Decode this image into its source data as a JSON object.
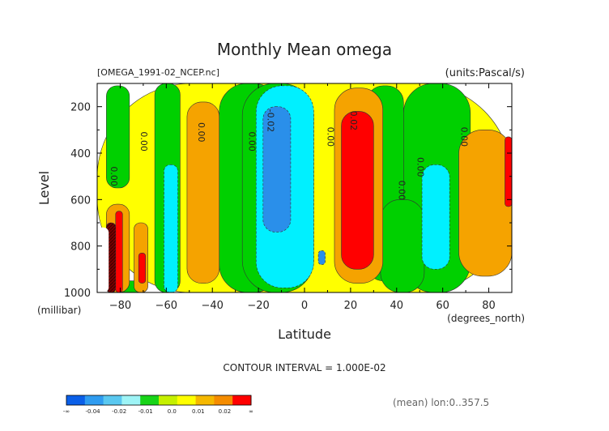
{
  "chart_data": {
    "type": "contour",
    "title": "Monthly Mean omega",
    "file_label": "[OMEGA_1991-02_NCEP.nc]",
    "units_label": "(units:Pascal/s)",
    "xlabel": "Latitude",
    "x_units": "(degrees_north)",
    "ylabel": "Level",
    "y_units": "(millibar)",
    "xlim": [
      -90,
      90
    ],
    "ylim": [
      1000,
      100
    ],
    "x_ticks": [
      -80,
      -60,
      -40,
      -20,
      0,
      20,
      40,
      60,
      80
    ],
    "x_tick_labels": [
      "−80",
      "−60",
      "−40",
      "−20",
      "0",
      "20",
      "40",
      "60",
      "80"
    ],
    "y_ticks": [
      1000,
      800,
      600,
      400,
      200
    ],
    "y_tick_labels": [
      "1000",
      "800",
      "600",
      "400",
      "200"
    ],
    "contour_interval": "CONTOUR INTERVAL = 1.000E-02",
    "mean_note": "(mean) lon:0..357.5",
    "contour_labels": [
      {
        "text": "0.00",
        "lat": -84,
        "lev": 500
      },
      {
        "text": "0.00",
        "lat": -71,
        "lev": 350
      },
      {
        "text": "0.00",
        "lat": -46,
        "lev": 310
      },
      {
        "text": "0.00",
        "lat": -24,
        "lev": 350
      },
      {
        "text": "-0.02",
        "lat": -16,
        "lev": 260
      },
      {
        "text": "0.00",
        "lat": 10,
        "lev": 330
      },
      {
        "text": "0.02",
        "lat": 20,
        "lev": 260
      },
      {
        "text": "0.00",
        "lat": 41,
        "lev": 560
      },
      {
        "text": "0.00",
        "lat": 49,
        "lev": 460
      },
      {
        "text": "0.00",
        "lat": 68,
        "lev": 330
      }
    ],
    "regions": [
      {
        "band": "yellow",
        "lat": [
          -90,
          90
        ],
        "lev": [
          100,
          1000
        ]
      },
      {
        "band": "green",
        "lat": [
          -86,
          -76
        ],
        "lev": [
          110,
          550
        ]
      },
      {
        "band": "green",
        "lat": [
          -65,
          -54
        ],
        "lev": [
          100,
          1000
        ]
      },
      {
        "band": "green",
        "lat": [
          -37,
          -10
        ],
        "lev": [
          100,
          1000
        ]
      },
      {
        "band": "green",
        "lat": [
          -27,
          4
        ],
        "lev": [
          100,
          1000
        ]
      },
      {
        "band": "green",
        "lat": [
          27,
          43
        ],
        "lev": [
          110,
          950
        ]
      },
      {
        "band": "green",
        "lat": [
          43,
          72
        ],
        "lev": [
          100,
          1000
        ]
      },
      {
        "band": "green",
        "lat": [
          33,
          52
        ],
        "lev": [
          600,
          1000
        ]
      },
      {
        "band": "green",
        "lat": [
          -86,
          -70
        ],
        "lev": [
          950,
          1000
        ]
      },
      {
        "band": "light-blue",
        "lat": [
          -61,
          -55
        ],
        "lev": [
          450,
          1000
        ]
      },
      {
        "band": "light-blue",
        "lat": [
          -21,
          4
        ],
        "lev": [
          110,
          980
        ]
      },
      {
        "band": "light-blue",
        "lat": [
          51,
          63
        ],
        "lev": [
          450,
          900
        ]
      },
      {
        "band": "blue",
        "lat": [
          -18,
          -6
        ],
        "lev": [
          200,
          740
        ]
      },
      {
        "band": "blue",
        "lat": [
          6,
          9
        ],
        "lev": [
          820,
          880
        ]
      },
      {
        "band": "orange",
        "lat": [
          13,
          34
        ],
        "lev": [
          120,
          960
        ]
      },
      {
        "band": "orange",
        "lat": [
          -51,
          -37
        ],
        "lev": [
          180,
          960
        ]
      },
      {
        "band": "orange",
        "lat": [
          67,
          90
        ],
        "lev": [
          300,
          930
        ]
      },
      {
        "band": "orange",
        "lat": [
          -86,
          -76
        ],
        "lev": [
          620,
          1000
        ]
      },
      {
        "band": "orange",
        "lat": [
          -74,
          -68
        ],
        "lev": [
          700,
          1000
        ]
      },
      {
        "band": "red",
        "lat": [
          16,
          30
        ],
        "lev": [
          220,
          900
        ]
      },
      {
        "band": "red",
        "lat": [
          -82,
          -79
        ],
        "lev": [
          650,
          1000
        ]
      },
      {
        "band": "red",
        "lat": [
          -72,
          -69
        ],
        "lev": [
          830,
          960
        ]
      },
      {
        "band": "red",
        "lat": [
          87,
          90
        ],
        "lev": [
          330,
          630
        ]
      },
      {
        "band": "dark-red",
        "lat": [
          -86,
          -82
        ],
        "lev": [
          700,
          1000
        ]
      },
      {
        "band": "missing",
        "lat": [
          -90,
          -85
        ],
        "lev": [
          720,
          1000
        ]
      }
    ],
    "legend": {
      "colors": [
        "#0a5fe8",
        "#2f9cf0",
        "#5ac8f0",
        "#9ef4f6",
        "#18d418",
        "#c5f000",
        "#ffff00",
        "#f5b800",
        "#f58c00",
        "#ff0000"
      ],
      "tick_labels": [
        "-∞",
        "-0.04",
        "-0.02",
        "-0.01",
        "0.0",
        "0.01",
        "0.02",
        "∞"
      ]
    },
    "band_colors": {
      "blue": "#2a8fea",
      "light-blue": "#00f0ff",
      "green": "#00d000",
      "yellow": "#ffff00",
      "orange": "#f5a300",
      "red": "#ff0000",
      "dark-red": "#7a0000",
      "missing": "#ffffff"
    }
  }
}
